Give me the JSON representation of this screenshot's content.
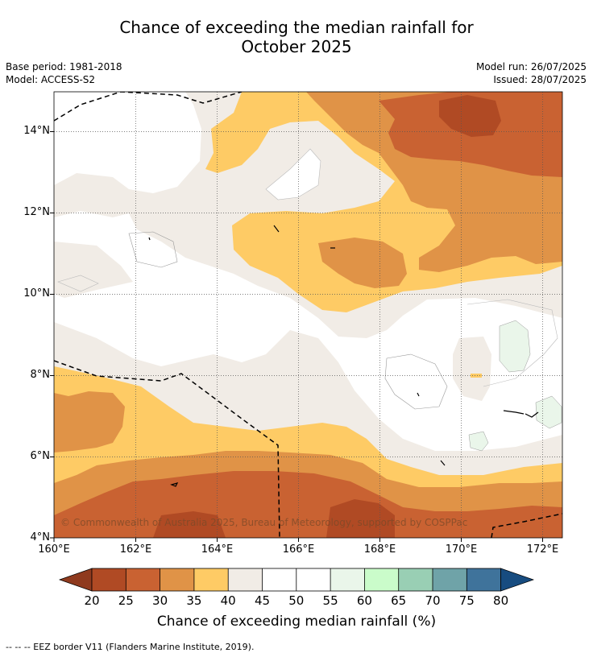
{
  "title_line1": "Chance of exceeding the median rainfall for",
  "title_line2": "October 2025",
  "base_period": "Base period: 1981-2018",
  "model": "Model: ACCESS-S2",
  "model_run": "Model run: 26/07/2025",
  "issued": "Issued: 28/07/2025",
  "copyright": "© Commonwealth of Australia 2025, Bureau of Meteorology, supported by COSPPac",
  "footer": "--  --  -- EEZ border V11 (Flanders Marine Institute, 2019).",
  "colors": {
    "c20": "#8f3a1e",
    "c25": "#b04a24",
    "c30": "#c96232",
    "c35": "#e09347",
    "c40": "#fecb65",
    "c45": "#f1ece6",
    "c50": "#ffffff",
    "c55": "#ffffff",
    "c60": "#eaf6ea",
    "c65": "#cafcca",
    "c70": "#99cfb4",
    "c75": "#6fa3a8",
    "c80": "#3f739b",
    "c85": "#174c80"
  },
  "chart_data": {
    "type": "heatmap",
    "title": "Chance of exceeding the median rainfall for October 2025",
    "xlabel": "",
    "ylabel": "",
    "xlim": [
      160,
      172.5
    ],
    "ylim": [
      4,
      15
    ],
    "x_ticks": [
      160,
      162,
      164,
      166,
      168,
      170,
      172
    ],
    "x_tick_labels": [
      "160°E",
      "162°E",
      "164°E",
      "166°E",
      "168°E",
      "170°E",
      "172°E"
    ],
    "y_ticks": [
      4,
      6,
      8,
      10,
      12,
      14
    ],
    "y_tick_labels": [
      "4°N",
      "6°N",
      "8°N",
      "10°N",
      "12°N",
      "14°N"
    ],
    "grid": true,
    "colorbar": {
      "label": "Chance of exceeding median rainfall (%)",
      "boundaries": [
        20,
        25,
        30,
        35,
        40,
        45,
        50,
        55,
        60,
        65,
        70,
        75,
        80
      ],
      "tick_labels": [
        "20",
        "25",
        "30",
        "35",
        "40",
        "45",
        "50",
        "55",
        "60",
        "65",
        "70",
        "75",
        "80"
      ],
      "extend": "both"
    },
    "regions": [
      {
        "range": "25-30",
        "area": "northeast corner 169.5-171E, 13.5-15N"
      },
      {
        "range": "25-30",
        "area": "southern band 166.5-169E, 4-4.6N"
      },
      {
        "range": "30-35",
        "area": "northeast 168-172.5E, 12.5-15N"
      },
      {
        "range": "30-35",
        "area": "southern band 160-172E, 4-5.5N"
      },
      {
        "range": "35-40",
        "area": "north-central 165-172.5E, 10.5-15N"
      },
      {
        "range": "35-40",
        "area": "west 160-161.7E, 6.8-8N"
      },
      {
        "range": "40-45",
        "area": "north-central 163.8-172.5E, 9.8-15N and south 160-172.5E, 4-7.5N"
      },
      {
        "range": "55-60",
        "area": "small patches near 171-172.5E, 6-9N"
      }
    ]
  }
}
